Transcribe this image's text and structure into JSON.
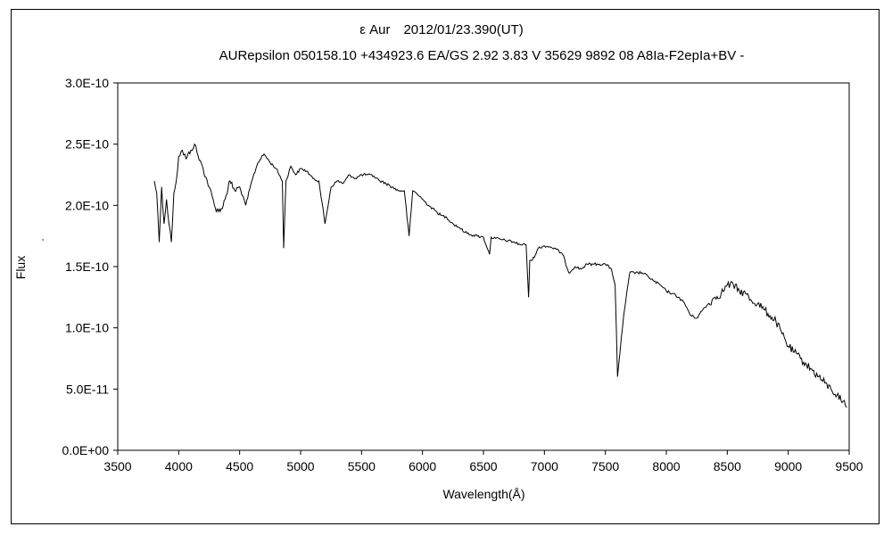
{
  "chart_data": {
    "type": "line",
    "title": "ε Aur　2012/01/23.390(UT)",
    "subtitle": "AURepsilon 050158.10 +434923.6 EA/GS 2.92 3.83 V 35629 9892 08 A8Ia-F2epIa+BV -",
    "xlabel": "Wavelength(Å)",
    "ylabel": "Flux",
    "xlim": [
      3500,
      9500
    ],
    "ylim": [
      0,
      3e-10
    ],
    "x_ticks": [
      "3500",
      "4000",
      "4500",
      "5000",
      "5500",
      "6000",
      "6500",
      "7000",
      "7500",
      "8000",
      "8500",
      "9000",
      "9500"
    ],
    "y_ticks": [
      "0.0E+00",
      "5.0E-11",
      "1.0E-10",
      "1.5E-10",
      "2.0E-10",
      "2.5E-10",
      "3.0E-10"
    ],
    "grid": false,
    "series": [
      {
        "x": [
          3800,
          3820,
          3840,
          3860,
          3880,
          3900,
          3920,
          3940,
          3960,
          3980,
          4000,
          4030,
          4060,
          4100,
          4130,
          4160,
          4200,
          4250,
          4300,
          4340,
          4380,
          4420,
          4460,
          4500,
          4550,
          4600,
          4650,
          4700,
          4750,
          4800,
          4850,
          4861,
          4880,
          4920,
          4960,
          5000,
          5050,
          5100,
          5150,
          5200,
          5250,
          5300,
          5350,
          5400,
          5450,
          5500,
          5550,
          5600,
          5650,
          5700,
          5750,
          5800,
          5850,
          5890,
          5920,
          5950,
          6000,
          6050,
          6100,
          6150,
          6200,
          6250,
          6300,
          6350,
          6400,
          6450,
          6500,
          6550,
          6563,
          6600,
          6650,
          6700,
          6750,
          6800,
          6850,
          6870,
          6880,
          6900,
          6950,
          7000,
          7050,
          7100,
          7150,
          7200,
          7250,
          7300,
          7350,
          7400,
          7450,
          7500,
          7550,
          7580,
          7600,
          7620,
          7650,
          7700,
          7750,
          7800,
          7850,
          7900,
          7950,
          8000,
          8050,
          8100,
          8150,
          8200,
          8250,
          8300,
          8350,
          8400,
          8450,
          8500,
          8550,
          8600,
          8650,
          8700,
          8750,
          8800,
          8850,
          8900,
          8950,
          9000,
          9050,
          9100,
          9150,
          9200,
          9250,
          9300,
          9350,
          9400,
          9450,
          9480
        ],
        "y": [
          2.2e-10,
          2.1e-10,
          1.7e-10,
          2.15e-10,
          1.85e-10,
          2.05e-10,
          1.85e-10,
          1.7e-10,
          2.1e-10,
          2.2e-10,
          2.4e-10,
          2.45e-10,
          2.38e-10,
          2.45e-10,
          2.5e-10,
          2.4e-10,
          2.3e-10,
          2.15e-10,
          1.98e-10,
          1.95e-10,
          2.05e-10,
          2.2e-10,
          2.12e-10,
          2.15e-10,
          2e-10,
          2.2e-10,
          2.35e-10,
          2.42e-10,
          2.35e-10,
          2.3e-10,
          2.2e-10,
          1.65e-10,
          2.2e-10,
          2.32e-10,
          2.25e-10,
          2.3e-10,
          2.28e-10,
          2.22e-10,
          2.2e-10,
          1.85e-10,
          2.15e-10,
          2.2e-10,
          2.18e-10,
          2.25e-10,
          2.22e-10,
          2.25e-10,
          2.25e-10,
          2.24e-10,
          2.2e-10,
          2.18e-10,
          2.15e-10,
          2.12e-10,
          2.12e-10,
          1.75e-10,
          2.12e-10,
          2.1e-10,
          2.05e-10,
          2e-10,
          1.96e-10,
          1.92e-10,
          1.9e-10,
          1.85e-10,
          1.82e-10,
          1.78e-10,
          1.76e-10,
          1.75e-10,
          1.74e-10,
          1.6e-10,
          1.74e-10,
          1.73e-10,
          1.72e-10,
          1.71e-10,
          1.7e-10,
          1.68e-10,
          1.68e-10,
          1.25e-10,
          1.55e-10,
          1.55e-10,
          1.65e-10,
          1.67e-10,
          1.66e-10,
          1.64e-10,
          1.6e-10,
          1.45e-10,
          1.5e-10,
          1.48e-10,
          1.52e-10,
          1.52e-10,
          1.52e-10,
          1.52e-10,
          1.48e-10,
          1.35e-10,
          6e-11,
          8e-11,
          1.1e-10,
          1.45e-10,
          1.45e-10,
          1.45e-10,
          1.42e-10,
          1.38e-10,
          1.35e-10,
          1.3e-10,
          1.28e-10,
          1.25e-10,
          1.2e-10,
          1.1e-10,
          1.08e-10,
          1.15e-10,
          1.2e-10,
          1.25e-10,
          1.28e-10,
          1.35e-10,
          1.35e-10,
          1.3e-10,
          1.28e-10,
          1.22e-10,
          1.2e-10,
          1.15e-10,
          1.1e-10,
          1.05e-10,
          9.5e-11,
          8.5e-11,
          8e-11,
          7.5e-11,
          7e-11,
          6.5e-11,
          6e-11,
          5.5e-11,
          5e-11,
          4.5e-11,
          4e-11,
          3.5e-11
        ]
      }
    ]
  }
}
